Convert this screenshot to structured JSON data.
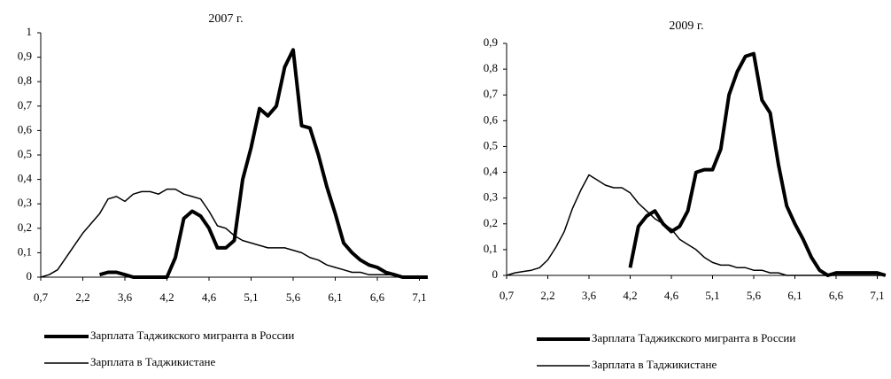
{
  "chart_data": [
    {
      "type": "line",
      "title": "2007 г.",
      "categories": [
        "0,7",
        null,
        null,
        null,
        null,
        "2,2",
        null,
        null,
        null,
        null,
        "3,6",
        null,
        null,
        null,
        null,
        "4,2",
        null,
        null,
        null,
        null,
        "4,6",
        null,
        null,
        null,
        null,
        "5,1",
        null,
        null,
        null,
        null,
        "5,6",
        null,
        null,
        null,
        null,
        "6,1",
        null,
        null,
        null,
        null,
        "6,6",
        null,
        null,
        null,
        null,
        "7,1",
        null
      ],
      "ylim": [
        0,
        1
      ],
      "yticks": [
        0,
        {
          "value": 0.1,
          "label": "0,1"
        },
        {
          "value": 0.2,
          "label": "0,2"
        },
        {
          "value": 0.3,
          "label": "0,3"
        },
        {
          "value": 0.4,
          "label": "0,4"
        },
        {
          "value": 0.5,
          "label": "0,5"
        },
        {
          "value": 0.6,
          "label": "0,6"
        },
        {
          "value": 0.7,
          "label": "0,7"
        },
        {
          "value": 0.8,
          "label": "0,8"
        },
        {
          "value": 0.9,
          "label": "0,9"
        },
        1
      ],
      "series": [
        {
          "name": "Зарплата Таджикского мигранта в России",
          "color": "#000000",
          "line_width": 4,
          "values": [
            null,
            null,
            null,
            null,
            null,
            null,
            null,
            0.01,
            0.02,
            0.02,
            0.01,
            0,
            0,
            0,
            0,
            0,
            0.08,
            0.24,
            0.27,
            0.25,
            0.2,
            0.12,
            0.12,
            0.15,
            0.4,
            0.53,
            0.69,
            0.66,
            0.7,
            0.86,
            0.93,
            0.62,
            0.61,
            0.5,
            0.37,
            0.26,
            0.14,
            0.1,
            0.07,
            0.05,
            0.04,
            0.02,
            0.01,
            0,
            0,
            0,
            0
          ]
        },
        {
          "name": "Зарплата в Таджикистане",
          "color": "#000000",
          "line_width": 1.5,
          "values": [
            0,
            0.01,
            0.03,
            0.08,
            0.13,
            0.18,
            0.22,
            0.26,
            0.32,
            0.33,
            0.31,
            0.34,
            0.35,
            0.35,
            0.34,
            0.36,
            0.36,
            0.34,
            0.33,
            0.32,
            0.27,
            0.21,
            0.2,
            0.17,
            0.15,
            0.14,
            0.13,
            0.12,
            0.12,
            0.12,
            0.11,
            0.1,
            0.08,
            0.07,
            0.05,
            0.04,
            0.03,
            0.02,
            0.02,
            0.01,
            0.01,
            0.01,
            0.01,
            0,
            0,
            0,
            0
          ]
        }
      ]
    },
    {
      "type": "line",
      "title": "2009 г.",
      "categories": [
        "0,7",
        null,
        null,
        null,
        null,
        "2,2",
        null,
        null,
        null,
        null,
        "3,6",
        null,
        null,
        null,
        null,
        "4,2",
        null,
        null,
        null,
        null,
        "4,6",
        null,
        null,
        null,
        null,
        "5,1",
        null,
        null,
        null,
        null,
        "5,6",
        null,
        null,
        null,
        null,
        "6,1",
        null,
        null,
        null,
        null,
        "6,6",
        null,
        null,
        null,
        null,
        "7,1",
        null
      ],
      "ylim": [
        0,
        0.9
      ],
      "yticks": [
        0,
        {
          "value": 0.1,
          "label": "0,1"
        },
        {
          "value": 0.2,
          "label": "0,2"
        },
        {
          "value": 0.3,
          "label": "0,3"
        },
        {
          "value": 0.4,
          "label": "0,4"
        },
        {
          "value": 0.5,
          "label": "0,5"
        },
        {
          "value": 0.6,
          "label": "0,6"
        },
        {
          "value": 0.7,
          "label": "0,7"
        },
        {
          "value": 0.8,
          "label": "0,8"
        },
        {
          "value": 0.9,
          "label": "0,9"
        }
      ],
      "series": [
        {
          "name": "Зарплата Таджикского мигранта в России",
          "color": "#000000",
          "line_width": 4,
          "values": [
            null,
            null,
            null,
            null,
            null,
            null,
            null,
            null,
            null,
            null,
            null,
            null,
            null,
            null,
            null,
            0.03,
            0.19,
            0.23,
            0.25,
            0.2,
            0.17,
            0.19,
            0.25,
            0.4,
            0.41,
            0.41,
            0.49,
            0.7,
            0.79,
            0.85,
            0.86,
            0.68,
            0.63,
            0.43,
            0.27,
            0.2,
            0.14,
            0.07,
            0.02,
            0,
            0.01,
            0.01,
            0.01,
            0.01,
            0.01,
            0.01,
            0
          ]
        },
        {
          "name": "Зарплата в Таджикистане",
          "color": "#000000",
          "line_width": 1.5,
          "values": [
            0,
            0.01,
            0.015,
            0.02,
            0.03,
            0.06,
            0.11,
            0.17,
            0.26,
            0.33,
            0.39,
            0.37,
            0.35,
            0.34,
            0.34,
            0.32,
            0.28,
            0.25,
            0.22,
            0.2,
            0.18,
            0.14,
            0.12,
            0.1,
            0.07,
            0.05,
            0.04,
            0.04,
            0.03,
            0.03,
            0.02,
            0.02,
            0.01,
            0.01,
            0,
            0,
            0,
            0,
            0,
            0,
            0,
            0,
            0,
            0,
            0,
            0,
            0
          ]
        }
      ]
    }
  ]
}
